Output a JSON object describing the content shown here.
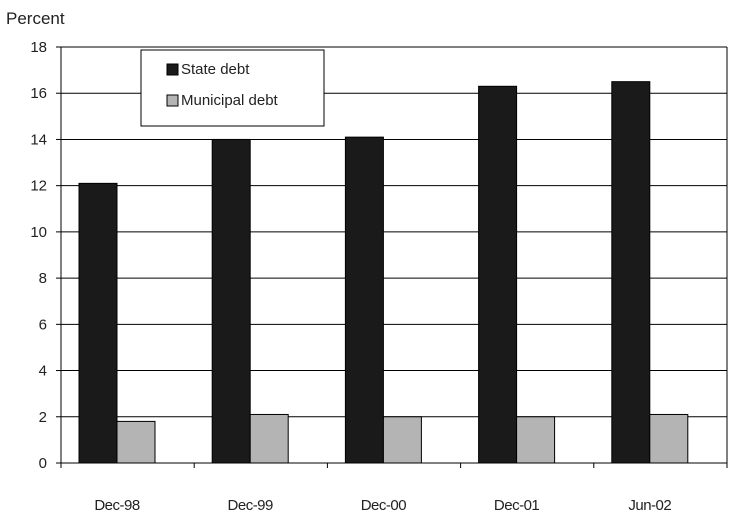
{
  "chart_data": {
    "type": "bar",
    "unit_label": "Percent",
    "categories": [
      "Dec-98",
      "Dec-99",
      "Dec-00",
      "Dec-01",
      "Jun-02"
    ],
    "category_labels": [
      "Dec-98",
      "Dec-99",
      "Dec-00",
      "Dec-01",
      "Jun-02"
    ],
    "series": [
      {
        "name": "State debt",
        "values": [
          12.1,
          14.0,
          14.1,
          16.3,
          16.5
        ],
        "color": "#1a1a1a"
      },
      {
        "name": "Municipal debt",
        "values": [
          1.8,
          2.1,
          2.0,
          2.0,
          2.1
        ],
        "color": "#b4b4b4"
      }
    ],
    "ylim": [
      0,
      18
    ],
    "yticks": [
      "0",
      "2",
      "4",
      "6",
      "8",
      "10",
      "12",
      "14",
      "16",
      "18"
    ],
    "grid": true,
    "legend_position": "top-left"
  }
}
